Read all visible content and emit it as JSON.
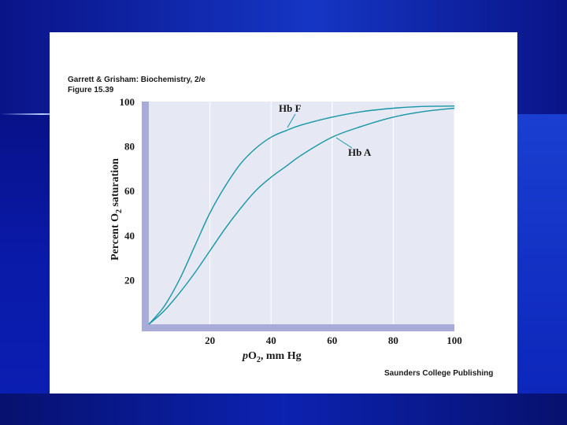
{
  "slide": {
    "caption_line1": "Garrett & Grisham: Biochemistry, 2/e",
    "caption_line2": "Figure 15.39",
    "publisher": "Saunders College Publishing"
  },
  "colors": {
    "background": "#0a1aa8",
    "plot_area": "#e6e9f4",
    "axis_band": "#a9acd6",
    "curve": "#1596a6"
  },
  "chart_data": {
    "type": "line",
    "title": "",
    "xlabel_parts": [
      "p",
      "O",
      "2",
      ", mm Hg"
    ],
    "ylabel_parts": [
      "Percent O",
      "2",
      " saturation"
    ],
    "xlim": [
      0,
      100
    ],
    "ylim": [
      0,
      100
    ],
    "x_ticks": [
      20,
      40,
      60,
      80,
      100
    ],
    "y_ticks": [
      20,
      40,
      60,
      80,
      100
    ],
    "grid": true,
    "series": [
      {
        "name": "Hb F",
        "x": [
          0,
          5,
          10,
          15,
          20,
          25,
          30,
          35,
          40,
          45,
          50,
          60,
          70,
          80,
          90,
          100
        ],
        "y": [
          0,
          8,
          20,
          35,
          50,
          62,
          72,
          79,
          84,
          87,
          89.5,
          93,
          95.5,
          97,
          97.8,
          98
        ]
      },
      {
        "name": "Hb A",
        "x": [
          0,
          5,
          10,
          15,
          20,
          25,
          30,
          35,
          40,
          45,
          50,
          60,
          70,
          80,
          90,
          100
        ],
        "y": [
          0,
          6,
          14,
          23,
          33,
          43,
          52,
          60,
          66,
          71,
          76,
          84,
          89,
          93,
          95.5,
          97
        ]
      }
    ]
  }
}
